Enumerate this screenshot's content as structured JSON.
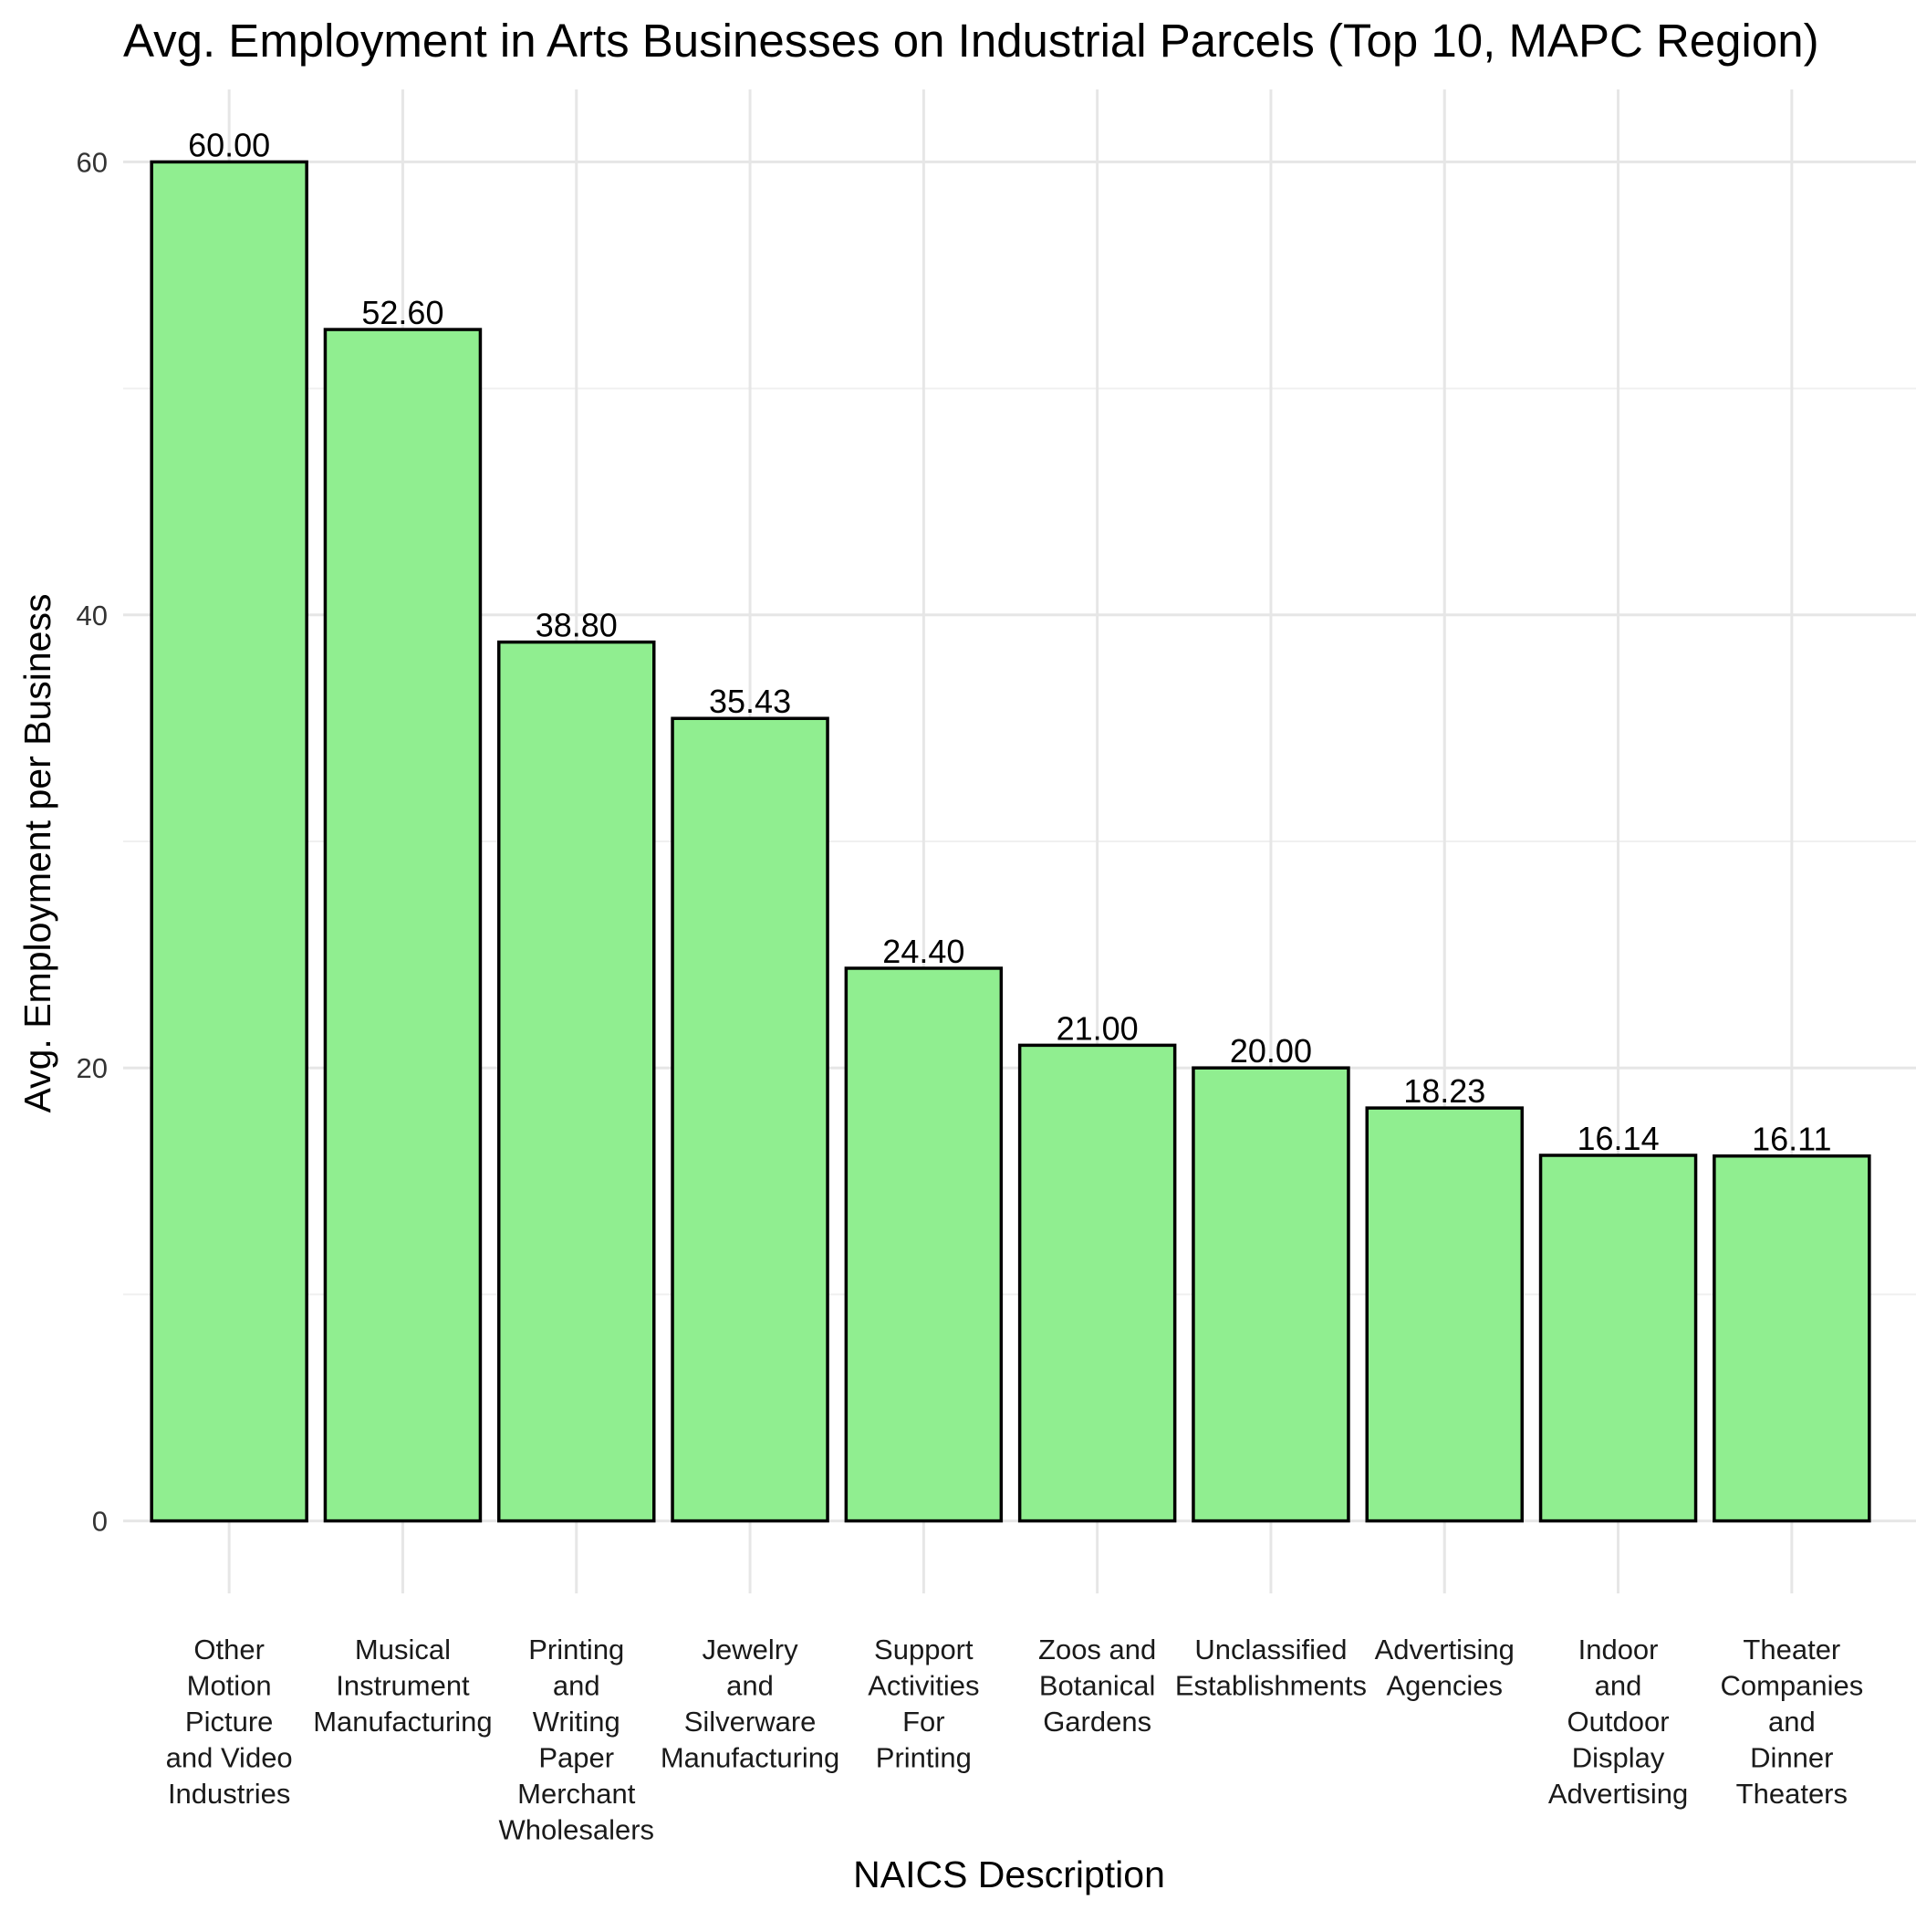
{
  "chart_data": {
    "type": "bar",
    "title": "Avg. Employment in Arts Businesses on Industrial Parcels (Top 10, MAPC Region)",
    "xlabel": "NAICS Description",
    "ylabel": "Avg. Employment per Business",
    "ylim": [
      -3.2,
      63.2
    ],
    "yticks": [
      0,
      20,
      40,
      60
    ],
    "ytick_labels": [
      "0",
      "20",
      "40",
      "60"
    ],
    "y_minor_gridlines": [
      10,
      30,
      50
    ],
    "grid": true,
    "legend": "none",
    "bar_color": "#90ee90",
    "bar_outline_color": "#000000",
    "categories": [
      "Other Motion Picture and Video Industries",
      "Musical Instrument Manufacturing",
      "Printing and Writing Paper Merchant Wholesalers",
      "Jewelry and Silverware Manufacturing",
      "Support Activities For Printing",
      "Zoos and Botanical Gardens",
      "Unclassified Establishments",
      "Advertising Agencies",
      "Indoor and Outdoor Display Advertising",
      "Theater Companies and Dinner Theaters"
    ],
    "category_label_lines": [
      [
        "Other",
        "Motion",
        "Picture",
        "and Video",
        "Industries"
      ],
      [
        "Musical",
        "Instrument",
        "Manufacturing"
      ],
      [
        "Printing",
        "and",
        "Writing",
        "Paper",
        "Merchant",
        "Wholesalers"
      ],
      [
        "Jewelry",
        "and",
        "Silverware",
        "Manufacturing"
      ],
      [
        "Support",
        "Activities",
        "For",
        "Printing"
      ],
      [
        "Zoos and",
        "Botanical",
        "Gardens"
      ],
      [
        "Unclassified",
        "Establishments"
      ],
      [
        "Advertising",
        "Agencies"
      ],
      [
        "Indoor",
        "and",
        "Outdoor",
        "Display",
        "Advertising"
      ],
      [
        "Theater",
        "Companies",
        "and",
        "Dinner",
        "Theaters"
      ]
    ],
    "values": [
      60.0,
      52.6,
      38.8,
      35.43,
      24.4,
      21.0,
      20.0,
      18.23,
      16.14,
      16.11
    ],
    "value_labels": [
      "60.00",
      "52.60",
      "38.80",
      "35.43",
      "24.40",
      "21.00",
      "20.00",
      "18.23",
      "16.14",
      "16.11"
    ]
  }
}
